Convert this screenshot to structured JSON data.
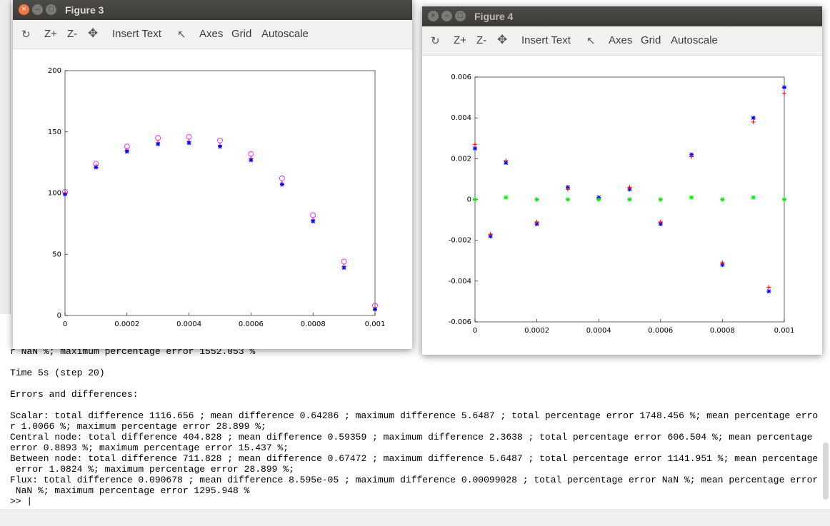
{
  "terminal": {
    "lines": [
      "",
      "",
      "",
      "r NaN %; maximum percentage error 1552.053 %",
      "",
      "Time 5s (step 20)",
      "",
      "Errors and differences:",
      "",
      "Scalar: total difference 1116.656 ; mean difference 0.64286 ; maximum difference 5.6487 ; total percentage error 1748.456 %; mean percentage erro",
      "r 1.0066 %; maximum percentage error 28.899 %;",
      "Central node: total difference 404.828 ; mean difference 0.59359 ; maximum difference 2.3638 ; total percentage error 606.504 %; mean percentage",
      "error 0.8893 %; maximum percentage error 15.437 %;",
      "Between node: total difference 711.828 ; mean difference 0.67472 ; maximum difference 5.6487 ; total percentage error 1141.951 %; mean percentage",
      " error 1.0824 %; maximum percentage error 28.899 %;",
      "Flux: total difference 0.090678 ; mean difference 8.595e-05 ; maximum difference 0.00099028 ; total percentage error NaN %; mean percentage error",
      " NaN %; maximum percentage error 1295.948 %",
      ">> |"
    ]
  },
  "figure3": {
    "title": "Figure 3",
    "toolbar": {
      "zoom_in": "Z+",
      "zoom_out": "Z-",
      "insert_text": "Insert Text",
      "axes": "Axes",
      "grid": "Grid",
      "autoscale": "Autoscale"
    }
  },
  "figure4": {
    "title": "Figure 4",
    "toolbar": {
      "zoom_in": "Z+",
      "zoom_out": "Z-",
      "insert_text": "Insert Text",
      "axes": "Axes",
      "grid": "Grid",
      "autoscale": "Autoscale"
    }
  },
  "chart_data": [
    {
      "type": "scatter",
      "title": "",
      "xlim": [
        0,
        0.001
      ],
      "ylim": [
        0,
        200
      ],
      "xticks": [
        "0",
        "0.0002",
        "0.0004",
        "0.0006",
        "0.0008",
        "0.001"
      ],
      "yticks": [
        "0",
        "50",
        "100",
        "150",
        "200"
      ],
      "series": [
        {
          "marker": "o",
          "color": "#ff00ff",
          "x": [
            0,
            0.0001,
            0.0002,
            0.0003,
            0.0004,
            0.0005,
            0.0006,
            0.0007,
            0.0008,
            0.0009,
            0.001
          ],
          "y": [
            101,
            124,
            138,
            145,
            146,
            143,
            132,
            112,
            82,
            44,
            8
          ]
        },
        {
          "marker": "+",
          "color": "#ff0000",
          "x": [
            0,
            0.0001,
            0.0002,
            0.0003,
            0.0004,
            0.0005,
            0.0006,
            0.0007,
            0.0008,
            0.0009,
            0.001
          ],
          "y": [
            100,
            122,
            135,
            141,
            142,
            139,
            128,
            108,
            78,
            40,
            6
          ]
        },
        {
          "marker": "*",
          "color": "#0000ff",
          "x": [
            0,
            0.0001,
            0.0002,
            0.0003,
            0.0004,
            0.0005,
            0.0006,
            0.0007,
            0.0008,
            0.0009,
            0.001
          ],
          "y": [
            99,
            121,
            134,
            140,
            141,
            138,
            127,
            107,
            77,
            39,
            5
          ]
        }
      ]
    },
    {
      "type": "scatter",
      "title": "",
      "xlim": [
        0,
        0.001
      ],
      "ylim": [
        -0.006,
        0.006
      ],
      "xticks": [
        "0",
        "0.0002",
        "0.0004",
        "0.0006",
        "0.0008",
        "0.001"
      ],
      "yticks": [
        "-0.006",
        "-0.004",
        "-0.002",
        "0",
        "0.002",
        "0.004",
        "0.006"
      ],
      "series": [
        {
          "marker": "*",
          "color": "#0000ff",
          "x": [
            0,
            5e-05,
            0.0001,
            0.0002,
            0.0003,
            0.0004,
            0.0005,
            0.0006,
            0.0007,
            0.0008,
            0.0009,
            0.00095,
            0.001
          ],
          "y": [
            0.0025,
            -0.0018,
            0.0018,
            -0.0012,
            0.0006,
            0.0001,
            0.0005,
            -0.0012,
            0.0022,
            -0.0032,
            0.004,
            -0.0045,
            0.0055
          ]
        },
        {
          "marker": "+",
          "color": "#ff0000",
          "x": [
            0,
            5e-05,
            0.0001,
            0.0002,
            0.0003,
            0.0004,
            0.0005,
            0.0006,
            0.0007,
            0.0008,
            0.0009,
            0.00095,
            0.001
          ],
          "y": [
            0.0027,
            -0.0017,
            0.0019,
            -0.0011,
            0.0005,
            0.0,
            0.0006,
            -0.0011,
            0.0021,
            -0.0031,
            0.0038,
            -0.0043,
            0.0052
          ]
        },
        {
          "marker": "x",
          "color": "#00ee00",
          "x": [
            0,
            0.0001,
            0.0002,
            0.0003,
            0.0004,
            0.0005,
            0.0006,
            0.0007,
            0.0008,
            0.0009,
            0.001
          ],
          "y": [
            0.0,
            0.0001,
            0.0,
            0.0,
            0.0,
            0.0,
            0.0,
            0.0001,
            0.0,
            0.0001,
            0.0
          ]
        }
      ]
    }
  ]
}
